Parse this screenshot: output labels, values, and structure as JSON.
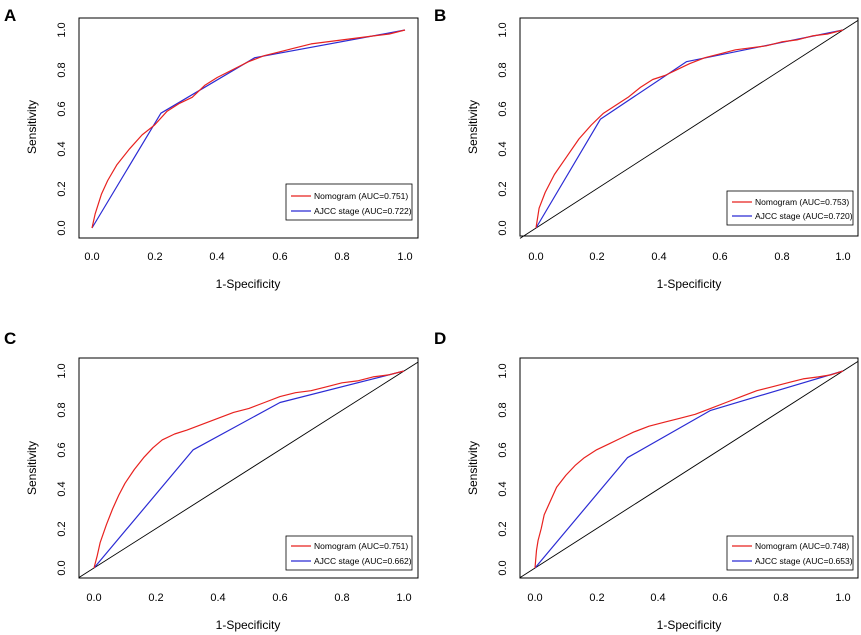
{
  "chart_data": [
    {
      "type": "line",
      "panel": "A",
      "xlabel": "1-Specificity",
      "ylabel": "Sensitivity",
      "xlim": [
        0,
        1
      ],
      "ylim": [
        0,
        1
      ],
      "xticks": [
        "0.0",
        "0.2",
        "0.4",
        "0.6",
        "0.8",
        "1.0"
      ],
      "yticks": [
        "0.0",
        "0.2",
        "0.4",
        "0.6",
        "0.8",
        "1.0"
      ],
      "diagonal": false,
      "legend_position": "bottom-right",
      "series": [
        {
          "name": "Nomogram (AUC=0.751)",
          "color": "#e8221f",
          "x": [
            0,
            0.01,
            0.03,
            0.05,
            0.08,
            0.12,
            0.16,
            0.2,
            0.24,
            0.28,
            0.32,
            0.36,
            0.4,
            0.45,
            0.5,
            0.55,
            0.6,
            0.65,
            0.7,
            0.75,
            0.8,
            0.85,
            0.9,
            0.95,
            1
          ],
          "y": [
            0,
            0.07,
            0.17,
            0.24,
            0.32,
            0.4,
            0.47,
            0.52,
            0.59,
            0.63,
            0.66,
            0.72,
            0.76,
            0.8,
            0.84,
            0.87,
            0.89,
            0.91,
            0.93,
            0.94,
            0.95,
            0.96,
            0.97,
            0.98,
            1
          ]
        },
        {
          "name": "AJCC stage (AUC=0.722)",
          "color": "#2b2bd4",
          "x": [
            0,
            0.22,
            0.52,
            1
          ],
          "y": [
            0,
            0.58,
            0.86,
            1
          ]
        }
      ]
    },
    {
      "type": "line",
      "panel": "B",
      "xlabel": "1-Specificity",
      "ylabel": "Sensitivity",
      "xlim": [
        0,
        1
      ],
      "ylim": [
        0,
        1
      ],
      "xticks": [
        "0.0",
        "0.2",
        "0.4",
        "0.6",
        "0.8",
        "1.0"
      ],
      "yticks": [
        "0.0",
        "0.2",
        "0.4",
        "0.6",
        "0.8",
        "1.0"
      ],
      "diagonal": true,
      "legend_position": "bottom-right",
      "series": [
        {
          "name": "Nomogram (AUC=0.753)",
          "color": "#e8221f",
          "x": [
            0,
            0.01,
            0.03,
            0.06,
            0.1,
            0.14,
            0.18,
            0.22,
            0.26,
            0.3,
            0.34,
            0.38,
            0.42,
            0.46,
            0.5,
            0.55,
            0.6,
            0.65,
            0.7,
            0.75,
            0.8,
            0.85,
            0.9,
            0.95,
            1
          ],
          "y": [
            0,
            0.1,
            0.18,
            0.27,
            0.36,
            0.45,
            0.52,
            0.58,
            0.62,
            0.66,
            0.71,
            0.75,
            0.77,
            0.8,
            0.83,
            0.86,
            0.88,
            0.9,
            0.91,
            0.92,
            0.94,
            0.95,
            0.97,
            0.98,
            1
          ]
        },
        {
          "name": "AJCC stage (AUC=0.720)",
          "color": "#2b2bd4",
          "x": [
            0,
            0.21,
            0.49,
            1
          ],
          "y": [
            0,
            0.55,
            0.84,
            1
          ]
        }
      ]
    },
    {
      "type": "line",
      "panel": "C",
      "xlabel": "1-Specificity",
      "ylabel": "Sensitivity",
      "xlim": [
        0,
        1
      ],
      "ylim": [
        0,
        1
      ],
      "xticks": [
        "0.0",
        "0.2",
        "0.4",
        "0.6",
        "0.8",
        "1.0"
      ],
      "yticks": [
        "0.0",
        "0.2",
        "0.4",
        "0.6",
        "0.8",
        "1.0"
      ],
      "diagonal": true,
      "legend_position": "bottom-right",
      "series": [
        {
          "name": "Nomogram (AUC=0.751)",
          "color": "#e8221f",
          "x": [
            0,
            0.01,
            0.02,
            0.04,
            0.06,
            0.08,
            0.1,
            0.13,
            0.16,
            0.19,
            0.22,
            0.26,
            0.3,
            0.35,
            0.4,
            0.45,
            0.5,
            0.55,
            0.6,
            0.65,
            0.7,
            0.75,
            0.8,
            0.85,
            0.9,
            0.95,
            1
          ],
          "y": [
            0,
            0.06,
            0.13,
            0.22,
            0.3,
            0.37,
            0.43,
            0.5,
            0.56,
            0.61,
            0.65,
            0.68,
            0.7,
            0.73,
            0.76,
            0.79,
            0.81,
            0.84,
            0.87,
            0.89,
            0.9,
            0.92,
            0.94,
            0.95,
            0.97,
            0.98,
            1
          ]
        },
        {
          "name": "AJCC stage (AUC=0.662)",
          "color": "#2b2bd4",
          "x": [
            0,
            0.32,
            0.6,
            1
          ],
          "y": [
            0,
            0.6,
            0.84,
            1
          ]
        }
      ]
    },
    {
      "type": "line",
      "panel": "D",
      "xlabel": "1-Specificity",
      "ylabel": "Sensitivity",
      "xlim": [
        0,
        1
      ],
      "ylim": [
        0,
        1
      ],
      "xticks": [
        "0.0",
        "0.2",
        "0.4",
        "0.6",
        "0.8",
        "1.0"
      ],
      "yticks": [
        "0.0",
        "0.2",
        "0.4",
        "0.6",
        "0.8",
        "1.0"
      ],
      "diagonal": true,
      "legend_position": "bottom-right",
      "series": [
        {
          "name": "Nomogram (AUC=0.748)",
          "color": "#e8221f",
          "x": [
            0,
            0.005,
            0.01,
            0.02,
            0.03,
            0.05,
            0.07,
            0.1,
            0.13,
            0.16,
            0.2,
            0.24,
            0.28,
            0.32,
            0.37,
            0.42,
            0.47,
            0.52,
            0.57,
            0.62,
            0.67,
            0.72,
            0.77,
            0.82,
            0.87,
            0.92,
            0.96,
            1
          ],
          "y": [
            0,
            0.09,
            0.14,
            0.2,
            0.27,
            0.34,
            0.41,
            0.47,
            0.52,
            0.56,
            0.6,
            0.63,
            0.66,
            0.69,
            0.72,
            0.74,
            0.76,
            0.78,
            0.81,
            0.84,
            0.87,
            0.9,
            0.92,
            0.94,
            0.96,
            0.97,
            0.98,
            1
          ]
        },
        {
          "name": "AJCC stage (AUC=0.653)",
          "color": "#2b2bd4",
          "x": [
            0,
            0.3,
            0.57,
            1
          ],
          "y": [
            0,
            0.56,
            0.8,
            1
          ]
        }
      ]
    }
  ]
}
